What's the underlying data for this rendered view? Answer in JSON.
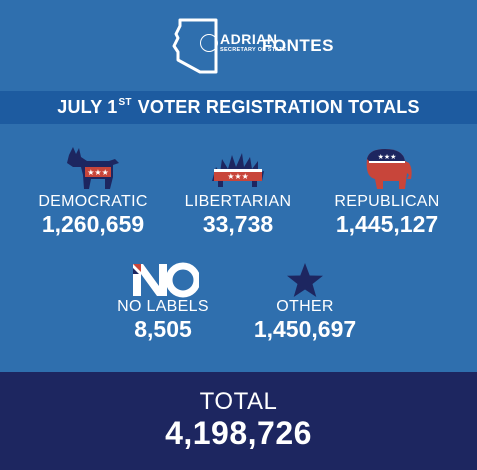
{
  "header": {
    "logo_first_name": "ADRIAN",
    "logo_last_name": "FONTES",
    "logo_subtitle": "SECRETARY OF STATE"
  },
  "banner": {
    "title_prefix": "JULY 1",
    "title_superscript": "ST",
    "title_suffix": "VOTER REGISTRATION TOTALS"
  },
  "parties": [
    {
      "name": "DEMOCRATIC",
      "count": "1,260,659",
      "icon": "donkey-icon"
    },
    {
      "name": "LIBERTARIAN",
      "count": "33,738",
      "icon": "porcupine-icon"
    },
    {
      "name": "REPUBLICAN",
      "count": "1,445,127",
      "icon": "elephant-icon"
    },
    {
      "name": "NO LABELS",
      "count": "8,505",
      "icon": "no-labels-logo-icon"
    },
    {
      "name": "OTHER",
      "count": "1,450,697",
      "icon": "star-icon"
    }
  ],
  "total": {
    "label": "TOTAL",
    "count": "4,198,726"
  },
  "colors": {
    "background": "#2f6fae",
    "banner": "#1d5ba0",
    "total_band": "#1d2660",
    "icon_navy": "#1d2660",
    "icon_red": "#c8453a"
  }
}
